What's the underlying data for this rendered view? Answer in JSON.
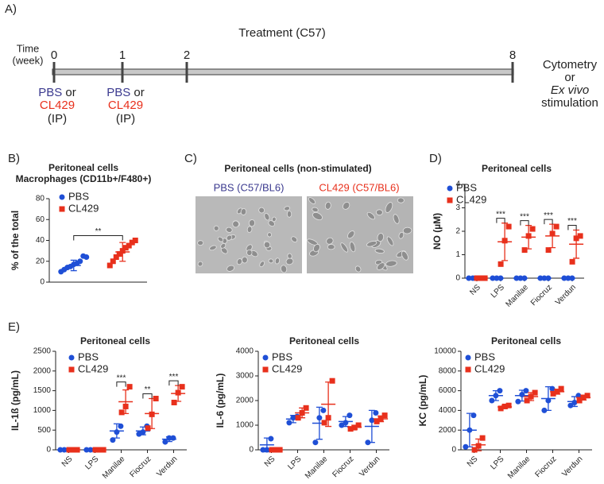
{
  "timeline": {
    "panel": "A)",
    "title": "Treatment (C57)",
    "axis_label": [
      "Time",
      "(week)"
    ],
    "ticks": [
      0,
      1,
      2,
      8
    ],
    "injections": [
      {
        "a": "PBS",
        "or": "or",
        "b": "CL429",
        "route": "(IP)"
      },
      {
        "a": "PBS",
        "or": "or",
        "b": "CL429",
        "route": "(IP)"
      }
    ],
    "readout": [
      "Cytometry",
      "or",
      "Ex vivo",
      "stimulation"
    ]
  },
  "images": {
    "panel": "C)",
    "title": "Peritoneal cells (non-stimulated)",
    "labels": [
      "PBS (C57/BL6)",
      "CL429 (C57/BL6)"
    ]
  },
  "chart_data": [
    {
      "panel": "B)",
      "type": "dotplot",
      "title": "Peritoneal cells",
      "subtitle": "Macrophages (CD11b+/F480+)",
      "y_label": "% of the total",
      "ylim": [
        0,
        80
      ],
      "yticks": [
        0,
        20,
        40,
        60,
        80
      ],
      "legend": "upper left",
      "series": [
        {
          "name": "PBS",
          "color": "#1f4fd6",
          "points": [
            [
              10,
              12,
              14,
              15,
              17,
              18,
              20,
              25,
              24
            ]
          ],
          "mean": [
            16
          ],
          "sd": [
            5
          ]
        },
        {
          "name": "CL429",
          "color": "#e8301c",
          "points": [
            [
              16,
              20,
              24,
              27,
              30,
              33,
              35,
              38,
              40
            ]
          ],
          "mean": [
            29
          ],
          "sd": [
            9
          ]
        }
      ],
      "significance": [
        "**"
      ]
    },
    {
      "panel": "D)",
      "type": "dotplot",
      "title": "Peritoneal cells",
      "y_label": "NO (µM)",
      "categories": [
        "NS",
        "LPS",
        "Manilae",
        "Fiocruz",
        "Verdun"
      ],
      "ylim": [
        0,
        4
      ],
      "yticks": [
        0,
        1,
        2,
        3,
        4
      ],
      "legend": "upper left",
      "series": [
        {
          "name": "PBS",
          "color": "#1f4fd6",
          "points": [
            [
              0,
              0,
              0
            ],
            [
              0,
              0,
              0
            ],
            [
              0,
              0,
              0
            ],
            [
              0,
              0,
              0
            ],
            [
              0,
              0,
              0
            ]
          ],
          "mean": [
            0,
            0,
            0,
            0,
            0
          ],
          "sd": [
            0,
            0,
            0,
            0,
            0
          ]
        },
        {
          "name": "CL429",
          "color": "#e8301c",
          "points": [
            [
              0,
              0,
              0
            ],
            [
              0.6,
              1.6,
              2.2
            ],
            [
              1.2,
              1.8,
              2.1
            ],
            [
              1.2,
              1.9,
              2.2
            ],
            [
              0.7,
              1.7,
              1.8
            ]
          ],
          "mean": [
            0,
            1.55,
            1.75,
            1.8,
            1.45
          ],
          "sd": [
            0,
            0.8,
            0.5,
            0.5,
            0.6
          ]
        }
      ],
      "significance": [
        null,
        "***",
        "***",
        "***",
        "***"
      ]
    },
    {
      "panel": "E)",
      "type": "dotplot",
      "title": "Peritoneal cells",
      "y_label": "IL-1ß (pg/mL)",
      "categories": [
        "NS",
        "LPS",
        "Manilae",
        "Fiocruz",
        "Verdun"
      ],
      "ylim": [
        0,
        2500
      ],
      "yticks": [
        0,
        500,
        1000,
        1500,
        2000,
        2500
      ],
      "legend": "upper left",
      "series": [
        {
          "name": "PBS",
          "color": "#1f4fd6",
          "points": [
            [
              0,
              0,
              0
            ],
            [
              0,
              0,
              0
            ],
            [
              250,
              450,
              600
            ],
            [
              400,
              450,
              600
            ],
            [
              200,
              300,
              300
            ]
          ],
          "mean": [
            0,
            0,
            480,
            480,
            270
          ],
          "sd": [
            0,
            0,
            180,
            100,
            60
          ]
        },
        {
          "name": "CL429",
          "color": "#e8301c",
          "points": [
            [
              0,
              0,
              0
            ],
            [
              0,
              0,
              0
            ],
            [
              950,
              1100,
              1600
            ],
            [
              550,
              900,
              1300
            ],
            [
              1200,
              1450,
              1600
            ]
          ],
          "mean": [
            0,
            0,
            1220,
            920,
            1430
          ],
          "sd": [
            0,
            0,
            300,
            380,
            200
          ]
        }
      ],
      "significance": [
        null,
        null,
        "***",
        "**",
        "***"
      ]
    },
    {
      "type": "dotplot",
      "title": "Peritoneal cells",
      "y_label": "IL-6 (pg/mL)",
      "categories": [
        "NS",
        "LPS",
        "Manilae",
        "Fiocruz",
        "Verdun"
      ],
      "ylim": [
        0,
        4000
      ],
      "yticks": [
        0,
        1000,
        2000,
        3000,
        4000
      ],
      "legend": "upper left",
      "series": [
        {
          "name": "PBS",
          "color": "#1f4fd6",
          "points": [
            [
              0,
              0,
              450
            ],
            [
              1100,
              1300,
              1350
            ],
            [
              300,
              1300,
              1600
            ],
            [
              1000,
              1100,
              1400
            ],
            [
              300,
              1200,
              1500
            ]
          ],
          "mean": [
            200,
            1250,
            1080,
            1150,
            950
          ],
          "sd": [
            280,
            150,
            650,
            200,
            650
          ]
        },
        {
          "name": "CL429",
          "color": "#e8301c",
          "points": [
            [
              0,
              0,
              0
            ],
            [
              1300,
              1500,
              1700
            ],
            [
              1100,
              1300,
              2800
            ],
            [
              850,
              900,
              1000
            ],
            [
              1150,
              1250,
              1400
            ]
          ],
          "mean": [
            0,
            1500,
            1850,
            920,
            1260
          ],
          "sd": [
            0,
            200,
            900,
            80,
            120
          ]
        }
      ],
      "significance": [
        null,
        null,
        null,
        null,
        null
      ]
    },
    {
      "type": "dotplot",
      "title": "Peritoneal cells",
      "y_label": "KC (pg/mL)",
      "categories": [
        "NS",
        "LPS",
        "Manilae",
        "Fiocruz",
        "Verdun"
      ],
      "ylim": [
        0,
        10000
      ],
      "yticks": [
        0,
        2000,
        4000,
        6000,
        8000,
        10000
      ],
      "legend": "upper left",
      "series": [
        {
          "name": "PBS",
          "color": "#1f4fd6",
          "points": [
            [
              300,
              2000,
              3500
            ],
            [
              5000,
              5500,
              6000
            ],
            [
              4900,
              5600,
              6000
            ],
            [
              4000,
              5000,
              6200
            ],
            [
              4500,
              4800,
              5500
            ]
          ],
          "mean": [
            2000,
            5500,
            5500,
            5200,
            4900
          ],
          "sd": [
            1700,
            500,
            550,
            1200,
            500
          ]
        },
        {
          "name": "CL429",
          "color": "#e8301c",
          "points": [
            [
              0,
              400,
              1200
            ],
            [
              4200,
              4400,
              4500
            ],
            [
              5000,
              5400,
              5800
            ],
            [
              5700,
              5900,
              6200
            ],
            [
              5000,
              5300,
              5500
            ]
          ],
          "mean": [
            500,
            4350,
            5400,
            5900,
            5300
          ],
          "sd": [
            600,
            150,
            400,
            250,
            250
          ]
        }
      ],
      "significance": [
        null,
        null,
        null,
        null,
        null
      ]
    }
  ]
}
